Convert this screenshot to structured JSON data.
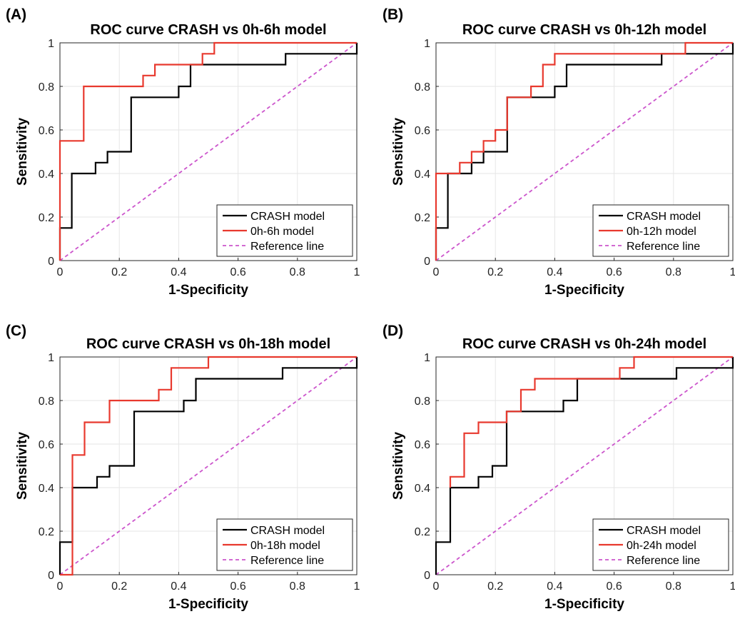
{
  "chart_data": [
    {
      "type": "line",
      "panel": "(A)",
      "title": "ROC curve CRASH vs 0h-6h model",
      "xlabel": "1-Specificity",
      "ylabel": "Sensitivity",
      "xlim": [
        0,
        1
      ],
      "ylim": [
        0,
        1
      ],
      "xticks": [
        "0",
        "0.2",
        "0.4",
        "0.6",
        "0.8",
        "1"
      ],
      "yticks": [
        "0",
        "0.2",
        "0.4",
        "0.6",
        "0.8",
        "1"
      ],
      "grid": true,
      "legend": "bottom-right",
      "series": [
        {
          "name": "CRASH model",
          "color": "#000000",
          "style": "solid",
          "x": [
            0,
            0,
            0.04,
            0.04,
            0.08,
            0.08,
            0.12,
            0.12,
            0.16,
            0.16,
            0.24,
            0.24,
            0.4,
            0.4,
            0.44,
            0.44,
            0.76,
            0.76,
            1.0,
            1.0
          ],
          "y": [
            0,
            0.15,
            0.15,
            0.4,
            0.4,
            0.4,
            0.4,
            0.45,
            0.45,
            0.5,
            0.5,
            0.75,
            0.75,
            0.8,
            0.8,
            0.9,
            0.9,
            0.95,
            0.95,
            1.0
          ]
        },
        {
          "name": "0h-6h model",
          "color": "#e8392e",
          "style": "solid",
          "x": [
            0,
            0,
            0.04,
            0.08,
            0.08,
            0.28,
            0.28,
            0.32,
            0.32,
            0.48,
            0.48,
            0.52,
            0.52,
            1.0
          ],
          "y": [
            0,
            0.55,
            0.55,
            0.55,
            0.8,
            0.8,
            0.85,
            0.85,
            0.9,
            0.9,
            0.95,
            0.95,
            1.0,
            1.0
          ]
        },
        {
          "name": "Reference line",
          "color": "#cc55cc",
          "style": "dashed",
          "x": [
            0,
            1
          ],
          "y": [
            0,
            1
          ]
        }
      ]
    },
    {
      "type": "line",
      "panel": "(B)",
      "title": "ROC curve CRASH vs 0h-12h model",
      "xlabel": "1-Specificity",
      "ylabel": "Sensitivity",
      "xlim": [
        0,
        1
      ],
      "ylim": [
        0,
        1
      ],
      "xticks": [
        "0",
        "0.2",
        "0.4",
        "0.6",
        "0.8",
        "1"
      ],
      "yticks": [
        "0",
        "0.2",
        "0.4",
        "0.6",
        "0.8",
        "1"
      ],
      "grid": true,
      "legend": "bottom-right",
      "series": [
        {
          "name": "CRASH model",
          "color": "#000000",
          "style": "solid",
          "x": [
            0,
            0,
            0.04,
            0.04,
            0.08,
            0.08,
            0.12,
            0.12,
            0.16,
            0.16,
            0.24,
            0.24,
            0.36,
            0.36,
            0.4,
            0.4,
            0.44,
            0.44,
            0.76,
            0.76,
            1.0,
            1.0
          ],
          "y": [
            0,
            0.15,
            0.15,
            0.4,
            0.4,
            0.4,
            0.4,
            0.45,
            0.45,
            0.5,
            0.5,
            0.75,
            0.75,
            0.75,
            0.75,
            0.8,
            0.8,
            0.9,
            0.9,
            0.95,
            0.95,
            1.0
          ]
        },
        {
          "name": "0h-12h model",
          "color": "#e8392e",
          "style": "solid",
          "x": [
            0,
            0,
            0.08,
            0.08,
            0.12,
            0.12,
            0.16,
            0.16,
            0.2,
            0.2,
            0.24,
            0.24,
            0.32,
            0.32,
            0.36,
            0.36,
            0.4,
            0.4,
            0.84,
            0.84,
            1.0
          ],
          "y": [
            0,
            0.4,
            0.4,
            0.45,
            0.45,
            0.5,
            0.5,
            0.55,
            0.55,
            0.6,
            0.6,
            0.75,
            0.75,
            0.8,
            0.8,
            0.9,
            0.9,
            0.95,
            0.95,
            1.0,
            1.0
          ]
        },
        {
          "name": "Reference line",
          "color": "#cc55cc",
          "style": "dashed",
          "x": [
            0,
            1
          ],
          "y": [
            0,
            1
          ]
        }
      ]
    },
    {
      "type": "line",
      "panel": "(C)",
      "title": "ROC curve CRASH vs 0h-18h model",
      "xlabel": "1-Specificity",
      "ylabel": "Sensitivity",
      "xlim": [
        0,
        1
      ],
      "ylim": [
        0,
        1
      ],
      "xticks": [
        "0",
        "0.2",
        "0.4",
        "0.6",
        "0.8",
        "1"
      ],
      "yticks": [
        "0",
        "0.2",
        "0.4",
        "0.6",
        "0.8",
        "1"
      ],
      "grid": true,
      "legend": "bottom-right",
      "series": [
        {
          "name": "CRASH model",
          "color": "#000000",
          "style": "solid",
          "x": [
            0,
            0,
            0.042,
            0.042,
            0.125,
            0.125,
            0.167,
            0.167,
            0.25,
            0.25,
            0.417,
            0.417,
            0.458,
            0.458,
            0.75,
            0.75,
            1.0,
            1.0
          ],
          "y": [
            0,
            0.15,
            0.15,
            0.4,
            0.4,
            0.45,
            0.45,
            0.5,
            0.5,
            0.75,
            0.75,
            0.8,
            0.8,
            0.9,
            0.9,
            0.95,
            0.95,
            1.0
          ]
        },
        {
          "name": "0h-18h model",
          "color": "#e8392e",
          "style": "solid",
          "x": [
            0,
            0.042,
            0.042,
            0.083,
            0.083,
            0.167,
            0.167,
            0.333,
            0.333,
            0.375,
            0.375,
            0.5,
            0.5,
            1.0
          ],
          "y": [
            0,
            0,
            0.55,
            0.55,
            0.7,
            0.7,
            0.8,
            0.8,
            0.85,
            0.85,
            0.95,
            0.95,
            1.0,
            1.0
          ]
        },
        {
          "name": "Reference line",
          "color": "#cc55cc",
          "style": "dashed",
          "x": [
            0,
            1
          ],
          "y": [
            0,
            1
          ]
        }
      ]
    },
    {
      "type": "line",
      "panel": "(D)",
      "title": "ROC curve CRASH vs 0h-24h model",
      "xlabel": "1-Specificity",
      "ylabel": "Sensitivity",
      "xlim": [
        0,
        1
      ],
      "ylim": [
        0,
        1
      ],
      "xticks": [
        "0",
        "0.2",
        "0.4",
        "0.6",
        "0.8",
        "1"
      ],
      "yticks": [
        "0",
        "0.2",
        "0.4",
        "0.6",
        "0.8",
        "1"
      ],
      "grid": true,
      "legend": "bottom-right",
      "series": [
        {
          "name": "CRASH model",
          "color": "#000000",
          "style": "solid",
          "x": [
            0,
            0,
            0.048,
            0.048,
            0.143,
            0.143,
            0.19,
            0.19,
            0.238,
            0.238,
            0.429,
            0.429,
            0.476,
            0.476,
            0.81,
            0.81,
            1.0,
            1.0
          ],
          "y": [
            0,
            0.15,
            0.15,
            0.4,
            0.4,
            0.45,
            0.45,
            0.5,
            0.5,
            0.75,
            0.75,
            0.8,
            0.8,
            0.9,
            0.9,
            0.95,
            0.95,
            1.0
          ]
        },
        {
          "name": "0h-24h model",
          "color": "#e8392e",
          "style": "solid",
          "x": [
            0.048,
            0.048,
            0.095,
            0.095,
            0.143,
            0.143,
            0.238,
            0.238,
            0.286,
            0.286,
            0.333,
            0.333,
            0.619,
            0.619,
            0.667,
            0.667,
            1.0
          ],
          "y": [
            0.4,
            0.45,
            0.45,
            0.65,
            0.65,
            0.7,
            0.7,
            0.75,
            0.75,
            0.85,
            0.85,
            0.9,
            0.9,
            0.95,
            0.95,
            1.0,
            1.0
          ]
        },
        {
          "name": "Reference line",
          "color": "#cc55cc",
          "style": "dashed",
          "x": [
            0,
            1
          ],
          "y": [
            0,
            1
          ]
        }
      ]
    }
  ]
}
